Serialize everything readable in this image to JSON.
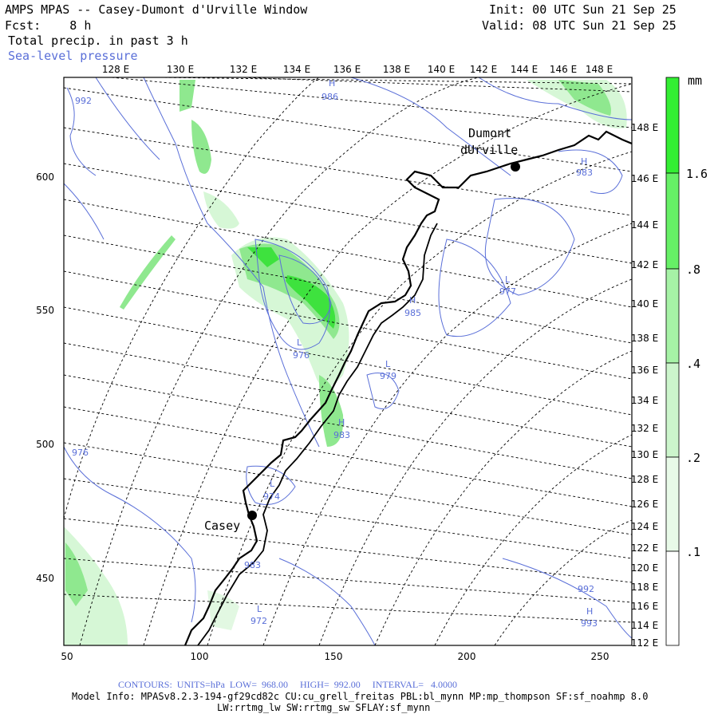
{
  "header": {
    "title": "AMPS MPAS -- Casey-Dumont d'Urville Window",
    "forecast": "Fcst:    8 h",
    "init": "Init: 00 UTC Sun 21 Sep 25",
    "valid": "Valid: 08 UTC Sun 21 Sep 25",
    "field1": "Total precip. in past 3 h",
    "field2": "Sea-level pressure"
  },
  "axes": {
    "top_lon_labels": [
      "128 E",
      "130 E",
      "132 E",
      "134 E",
      "136 E",
      "138 E",
      "140 E",
      "142 E",
      "144 E",
      "146 E",
      "148 E"
    ],
    "right_lon_labels": [
      "148 E",
      "146 E",
      "144 E",
      "142 E",
      "140 E",
      "138 E",
      "136 E",
      "134 E",
      "132 E",
      "130 E",
      "128 E",
      "126 E",
      "124 E",
      "122 E",
      "120 E",
      "118 E",
      "116 E",
      "114 E",
      "112 E"
    ],
    "left_grid_labels": [
      "600",
      "550",
      "500",
      "450"
    ],
    "bottom_grid_labels": [
      "50",
      "100",
      "150",
      "200",
      "250"
    ]
  },
  "stations": [
    {
      "name": "Casey"
    },
    {
      "name": "Dumont\ndUrville"
    }
  ],
  "pressure_labels": [
    {
      "text": "992"
    },
    {
      "text": "H\n986"
    },
    {
      "text": "H\n983"
    },
    {
      "text": "L\n977"
    },
    {
      "text": "H\n985"
    },
    {
      "text": "L\n976"
    },
    {
      "text": "L\n979"
    },
    {
      "text": "H\n983"
    },
    {
      "text": "976"
    },
    {
      "text": "L\n974"
    },
    {
      "text": "983"
    },
    {
      "text": "L\n972"
    },
    {
      "text": "992"
    },
    {
      "text": "H\n993"
    }
  ],
  "legend": {
    "unit": "mm",
    "labels": [
      "1.6",
      ".8",
      ".4",
      ".2",
      ".1"
    ],
    "colors": [
      "#33ee33",
      "#66f066",
      "#a6f2a6",
      "#ccf5cc",
      "#e8fae8"
    ]
  },
  "footer": {
    "contours": "CONTOURS:  UNITS=hPa  LOW=  968.00     HIGH=  992.00     INTERVAL=   4.0000",
    "model_info": "Model Info: MPASv8.2.3-194-gf29cd82c CU:cu_grell_freitas PBL:bl_mynn MP:mp_thompson SF:sf_noahmp 8.0",
    "model_info2": "LW:rrtmg_lw SW:rrtmg_sw SFLAY:sf_mynn"
  },
  "colors": {
    "contour": "#5a6fd8",
    "precip_light": "#d6f7d6",
    "precip_mid": "#8fe88f",
    "precip_strong": "#3ee23e"
  }
}
